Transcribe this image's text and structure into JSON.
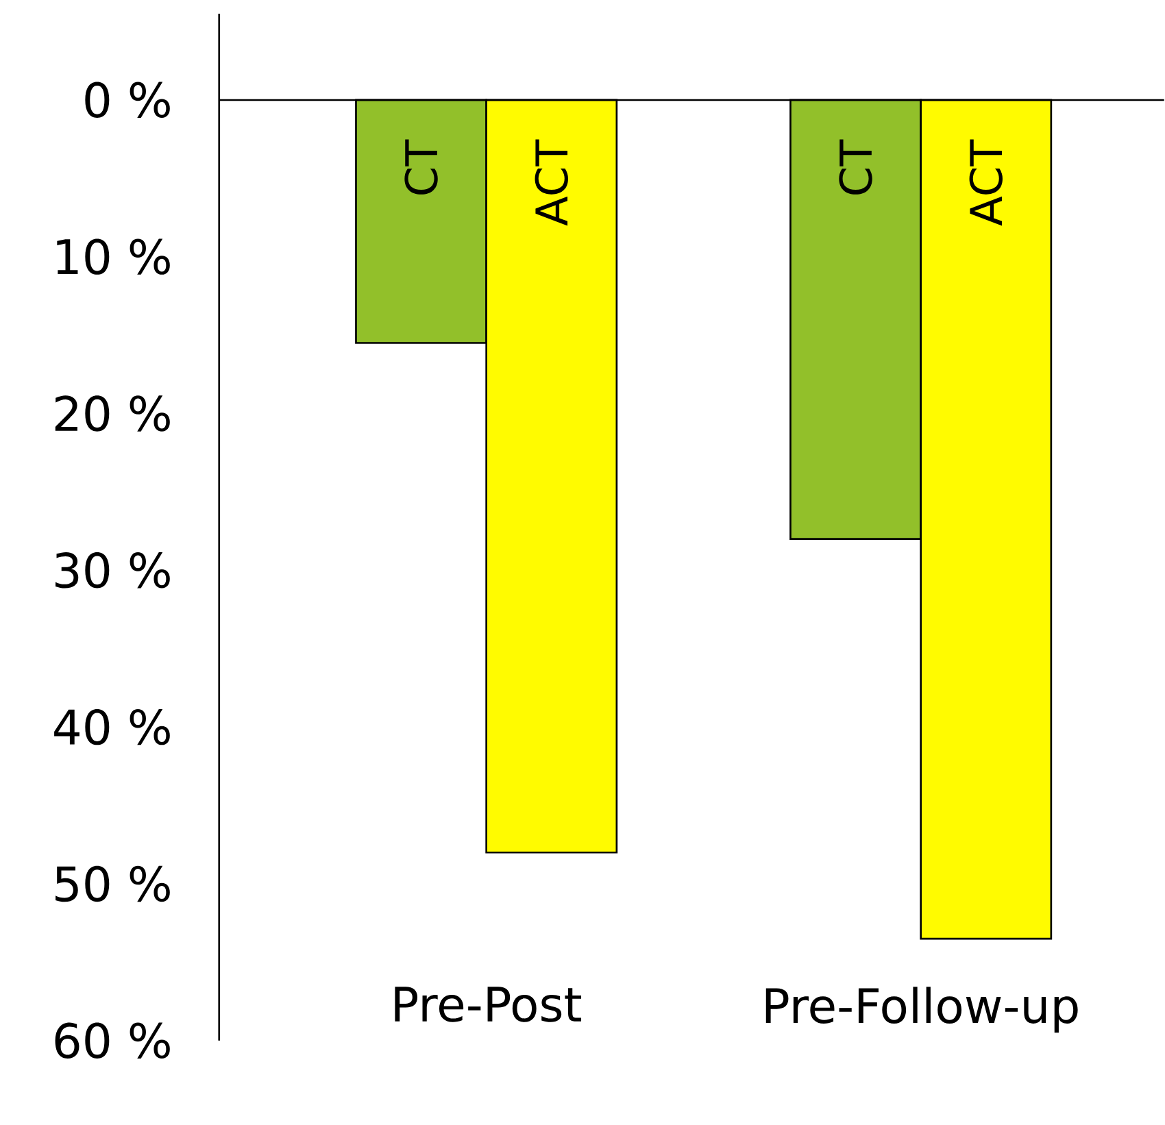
{
  "chart_data": {
    "type": "bar",
    "categories": [
      "Pre-Post",
      "Pre-Follow-up"
    ],
    "series": [
      {
        "name": "CT",
        "color": "#92c02a",
        "values": [
          15.5,
          28
        ]
      },
      {
        "name": "ACT",
        "color": "#fffb00",
        "values": [
          48,
          53.5
        ]
      }
    ],
    "ylim": [
      60,
      -5.5
    ],
    "yticks": [
      {
        "value": 0,
        "label": "0 %"
      },
      {
        "value": 10,
        "label": "10 %"
      },
      {
        "value": 20,
        "label": "20 %"
      },
      {
        "value": 30,
        "label": "30 %"
      },
      {
        "value": 40,
        "label": "40 %"
      },
      {
        "value": 50,
        "label": "50 %"
      },
      {
        "value": 60,
        "label": "60 %"
      }
    ]
  }
}
